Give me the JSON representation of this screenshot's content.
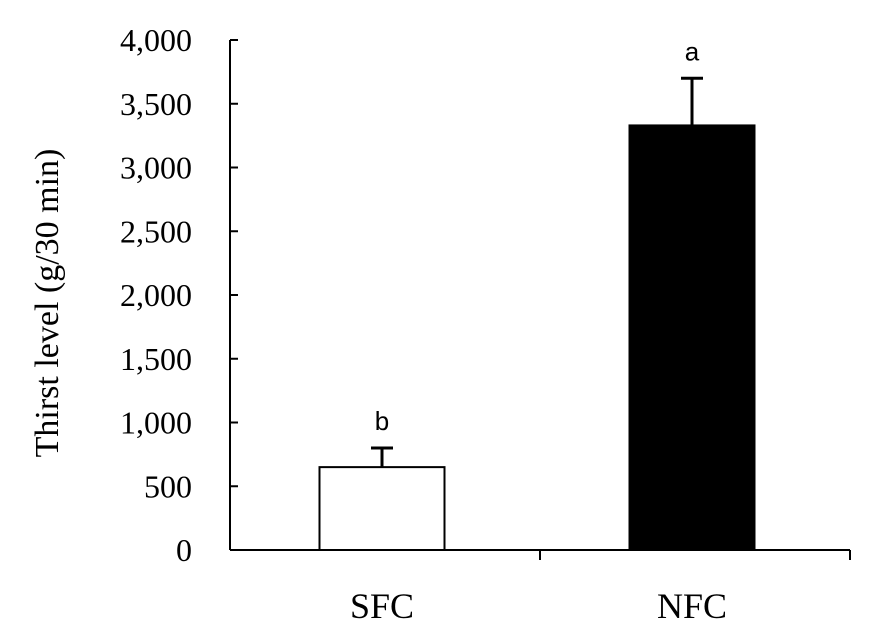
{
  "chart_data": {
    "type": "bar",
    "categories": [
      "SFC",
      "NFC"
    ],
    "values": [
      650,
      3330
    ],
    "errors": [
      150,
      370
    ],
    "sig_letters": [
      "b",
      "a"
    ],
    "bar_fills": [
      "#ffffff",
      "#000000"
    ],
    "ylabel": "Thirst level (g/30 min)",
    "xlabel": "",
    "ylim": [
      0,
      4000
    ],
    "yticks": [
      0,
      500,
      1000,
      1500,
      2000,
      2500,
      3000,
      3500,
      4000
    ],
    "ytick_labels": [
      "0",
      "500",
      "1,000",
      "1,500",
      "2,000",
      "2,500",
      "3,000",
      "3,500",
      "4,000"
    ],
    "grid": false
  }
}
